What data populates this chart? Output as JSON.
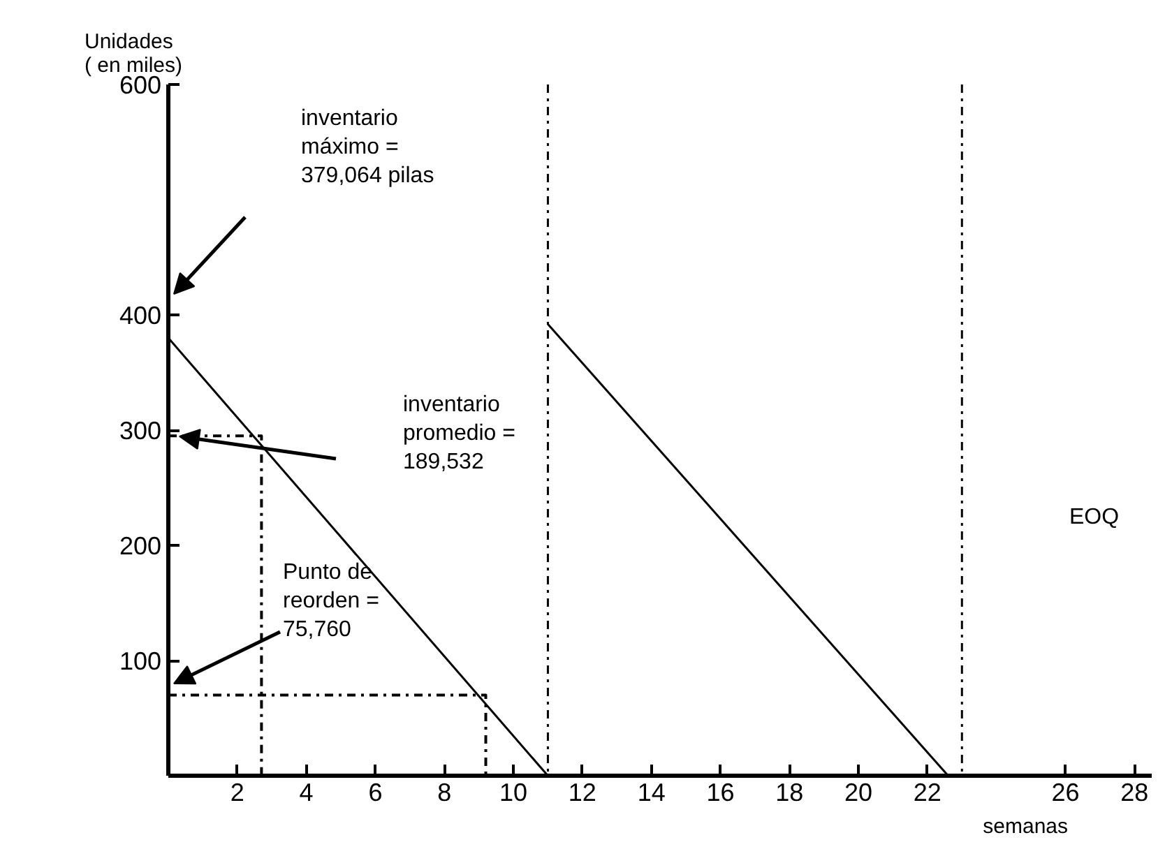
{
  "chart_data": {
    "type": "line",
    "xlabel": "semanas",
    "ylabel": "Unidades\n( en miles)",
    "xlim": [
      0,
      28.5
    ],
    "ylim": [
      0,
      600
    ],
    "xticks": [
      2,
      4,
      6,
      8,
      10,
      12,
      14,
      16,
      18,
      20,
      22,
      26,
      28
    ],
    "yticks": [
      100,
      200,
      300,
      400,
      600
    ],
    "grid": false,
    "marker": "none",
    "series": [
      {
        "color": "#000000",
        "x": [
          0,
          11
        ],
        "values": [
          380,
          0
        ],
        "line_style": "solid"
      },
      {
        "color": "#000000",
        "x": [
          11,
          22.6
        ],
        "values": [
          392,
          0
        ],
        "line_style": "solid"
      },
      {
        "color": "#000000",
        "x": [
          0,
          2.7,
          2.7
        ],
        "values": [
          295,
          295,
          0
        ],
        "line_style": "dashed"
      },
      {
        "color": "#000000",
        "x": [
          0,
          9.2,
          9.2
        ],
        "values": [
          70,
          70,
          0
        ],
        "line_style": "dashed"
      }
    ],
    "ref_lines": [
      {
        "axis": "x",
        "value": 11,
        "color": "#000000",
        "line_style": "dashed"
      },
      {
        "axis": "x",
        "value": 23,
        "color": "#000000",
        "line_style": "dashed"
      }
    ],
    "annotations": [
      "inventario\nmáximo =\n379,064 pilas",
      "inventario\npromedio =\n189,532",
      "Punto de\nreorden =\n75,760",
      "EOQ"
    ]
  }
}
